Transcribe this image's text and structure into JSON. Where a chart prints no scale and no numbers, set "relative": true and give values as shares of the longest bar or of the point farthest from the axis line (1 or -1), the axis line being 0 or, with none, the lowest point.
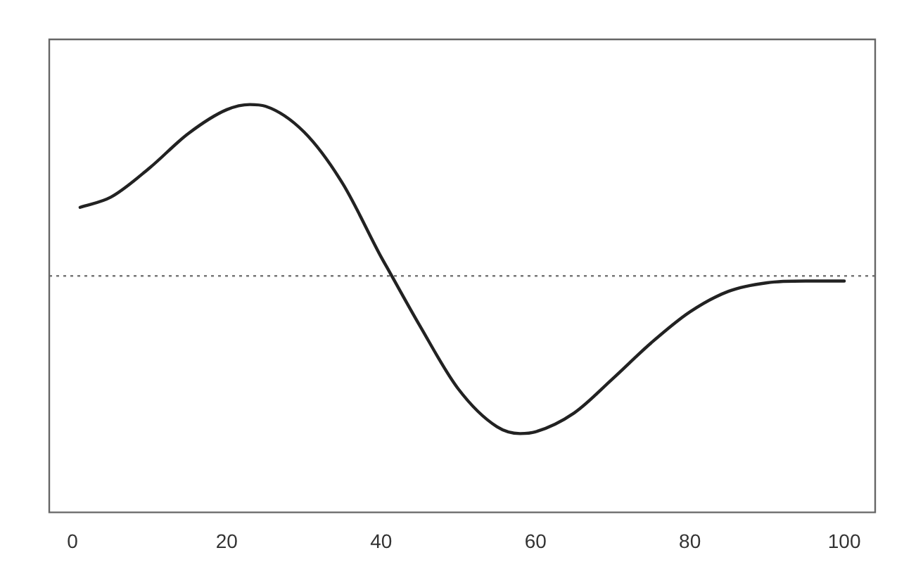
{
  "chart_data": {
    "type": "line",
    "relative": true,
    "x": [
      1,
      5,
      10,
      15,
      20,
      23,
      25,
      30,
      35,
      40,
      41,
      45,
      50,
      55,
      58,
      60,
      65,
      70,
      75,
      80,
      85,
      90,
      95,
      100
    ],
    "series": [
      {
        "color": "#222222",
        "values": [
          0.4,
          0.46,
          0.63,
          0.83,
          0.97,
          1.0,
          0.99,
          0.84,
          0.54,
          0.11,
          0.03,
          -0.29,
          -0.66,
          -0.88,
          -0.92,
          -0.91,
          -0.8,
          -0.6,
          -0.39,
          -0.21,
          -0.09,
          -0.04,
          -0.03,
          -0.03
        ]
      }
    ],
    "xlim": [
      -3,
      104
    ],
    "xticks": [
      0,
      20,
      40,
      60,
      80,
      100
    ],
    "ref_lines": [
      {
        "axis": "y",
        "value": 0,
        "color": "#777777",
        "line_style": "dotted"
      }
    ],
    "grid": false,
    "legend": false,
    "marker": "none",
    "line_style": "solid"
  }
}
